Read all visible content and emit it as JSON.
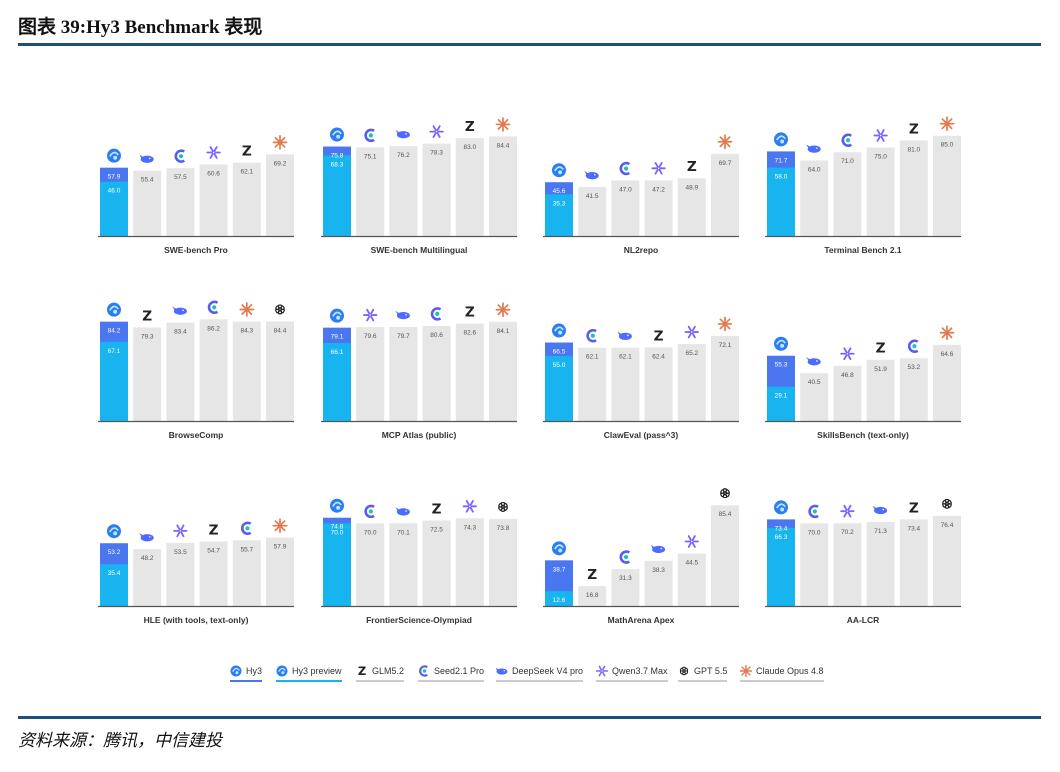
{
  "report": {
    "title": "图表 39:Hy3 Benchmark 表现",
    "source": "资料来源：腾讯，中信建投"
  },
  "colors": {
    "hy3": "#4a76f0",
    "hy3_preview": "#18b4f0",
    "other_bar": "#e6e6e6",
    "axis": "#555555",
    "rule": "#1f4e79",
    "claude": "#e07a4f",
    "qwen": "#7b61ff",
    "seed": "#5b5bf0",
    "deepseek": "#4d6bfe",
    "glm": "#222222",
    "gpt": "#222222"
  },
  "legend": [
    {
      "name": "Hy3",
      "icon": "hy3-icon",
      "underline": "#4a76f0"
    },
    {
      "name": "Hy3 preview",
      "icon": "hy3-preview-icon",
      "underline": "#18b4f0"
    },
    {
      "name": "GLM5.2",
      "icon": "glm-icon",
      "underline": "#cccccc"
    },
    {
      "name": "Seed2.1 Pro",
      "icon": "seed-icon",
      "underline": "#cccccc"
    },
    {
      "name": "DeepSeek V4 pro",
      "icon": "deepseek-icon",
      "underline": "#cccccc"
    },
    {
      "name": "Qwen3.7 Max",
      "icon": "qwen-icon",
      "underline": "#cccccc"
    },
    {
      "name": "GPT 5.5",
      "icon": "gpt-icon",
      "underline": "#cccccc"
    },
    {
      "name": "Claude Opus 4.8",
      "icon": "claude-icon",
      "underline": "#cccccc"
    }
  ],
  "chart_data": [
    {
      "type": "bar",
      "title": "SWE-bench Pro",
      "ylim": [
        0,
        100
      ],
      "hy3": 57.9,
      "hy3_preview": 46.0,
      "series": [
        {
          "name": "DeepSeek V4 pro",
          "value": 55.4
        },
        {
          "name": "Seed2.1 Pro",
          "value": 57.5
        },
        {
          "name": "Qwen3.7 Max",
          "value": 60.6
        },
        {
          "name": "GLM5.2",
          "value": 62.1
        },
        {
          "name": "Claude Opus 4.8",
          "value": 69.2
        }
      ]
    },
    {
      "type": "bar",
      "title": "SWE-bench Multilingual",
      "ylim": [
        0,
        100
      ],
      "hy3": 75.8,
      "hy3_preview": 68.3,
      "series": [
        {
          "name": "Seed2.1 Pro",
          "value": 75.1
        },
        {
          "name": "DeepSeek V4 pro",
          "value": 76.2
        },
        {
          "name": "Qwen3.7 Max",
          "value": 78.3
        },
        {
          "name": "GLM5.2",
          "value": 83.0
        },
        {
          "name": "Claude Opus 4.8",
          "value": 84.4
        }
      ]
    },
    {
      "type": "bar",
      "title": "NL2repo",
      "ylim": [
        0,
        100
      ],
      "hy3": 45.6,
      "hy3_preview": 35.3,
      "series": [
        {
          "name": "DeepSeek V4 pro",
          "value": 41.5
        },
        {
          "name": "Seed2.1 Pro",
          "value": 47.0
        },
        {
          "name": "Qwen3.7 Max",
          "value": 47.2
        },
        {
          "name": "GLM5.2",
          "value": 48.9
        },
        {
          "name": "Claude Opus 4.8",
          "value": 69.7
        }
      ]
    },
    {
      "type": "bar",
      "title": "Terminal Bench 2.1",
      "ylim": [
        0,
        100
      ],
      "hy3": 71.7,
      "hy3_preview": 58.0,
      "series": [
        {
          "name": "DeepSeek V4 pro",
          "value": 64.0
        },
        {
          "name": "Seed2.1 Pro",
          "value": 71.0
        },
        {
          "name": "Qwen3.7 Max",
          "value": 75.0
        },
        {
          "name": "GLM5.2",
          "value": 81.0
        },
        {
          "name": "Claude Opus 4.8",
          "value": 85.0
        }
      ]
    },
    {
      "type": "bar",
      "title": "BrowseComp",
      "ylim": [
        0,
        100
      ],
      "hy3": 84.2,
      "hy3_preview": 67.1,
      "series": [
        {
          "name": "GLM5.2",
          "value": 79.3
        },
        {
          "name": "DeepSeek V4 pro",
          "value": 83.4
        },
        {
          "name": "Seed2.1 Pro",
          "value": 86.2
        },
        {
          "name": "Claude Opus 4.8",
          "value": 84.3
        },
        {
          "name": "GPT 5.5",
          "value": 84.4
        }
      ]
    },
    {
      "type": "bar",
      "title": "MCP Atlas (public)",
      "ylim": [
        0,
        100
      ],
      "hy3": 79.1,
      "hy3_preview": 66.1,
      "series": [
        {
          "name": "Qwen3.7 Max",
          "value": 79.6
        },
        {
          "name": "DeepSeek V4 pro",
          "value": 79.7
        },
        {
          "name": "Seed2.1 Pro",
          "value": 80.6
        },
        {
          "name": "GLM5.2",
          "value": 82.6
        },
        {
          "name": "Claude Opus 4.8",
          "value": 84.1
        }
      ]
    },
    {
      "type": "bar",
      "title": "ClawEval (pass^3)",
      "ylim": [
        0,
        100
      ],
      "hy3": 66.5,
      "hy3_preview": 55.0,
      "series": [
        {
          "name": "Seed2.1 Pro",
          "value": 62.1
        },
        {
          "name": "DeepSeek V4 pro",
          "value": 62.1
        },
        {
          "name": "GLM5.2",
          "value": 62.4
        },
        {
          "name": "Qwen3.7 Max",
          "value": 65.2
        },
        {
          "name": "Claude Opus 4.8",
          "value": 72.1
        }
      ]
    },
    {
      "type": "bar",
      "title": "SkillsBench (text-only)",
      "ylim": [
        0,
        100
      ],
      "hy3": 55.3,
      "hy3_preview": 29.1,
      "series": [
        {
          "name": "DeepSeek V4 pro",
          "value": 40.5
        },
        {
          "name": "Qwen3.7 Max",
          "value": 46.8
        },
        {
          "name": "GLM5.2",
          "value": 51.9
        },
        {
          "name": "Seed2.1 Pro",
          "value": 53.2
        },
        {
          "name": "Claude Opus 4.8",
          "value": 64.6
        }
      ]
    },
    {
      "type": "bar",
      "title": "HLE (with tools, text-only)",
      "ylim": [
        0,
        100
      ],
      "hy3": 53.2,
      "hy3_preview": 35.4,
      "series": [
        {
          "name": "DeepSeek V4 pro",
          "value": 48.2
        },
        {
          "name": "Qwen3.7 Max",
          "value": 53.5
        },
        {
          "name": "GLM5.2",
          "value": 54.7
        },
        {
          "name": "Seed2.1 Pro",
          "value": 55.7
        },
        {
          "name": "Claude Opus 4.8",
          "value": 57.9
        }
      ]
    },
    {
      "type": "bar",
      "title": "FrontierScience-Olympiad",
      "ylim": [
        0,
        100
      ],
      "hy3": 74.8,
      "hy3_preview": 70.0,
      "series": [
        {
          "name": "Seed2.1 Pro",
          "value": 70.0
        },
        {
          "name": "DeepSeek V4 pro",
          "value": 70.1
        },
        {
          "name": "GLM5.2",
          "value": 72.5
        },
        {
          "name": "Qwen3.7 Max",
          "value": 74.3
        },
        {
          "name": "GPT 5.5",
          "value": 73.8
        }
      ]
    },
    {
      "type": "bar",
      "title": "MathArena Apex",
      "ylim": [
        0,
        100
      ],
      "hy3": 38.7,
      "hy3_preview": 12.6,
      "series": [
        {
          "name": "GLM5.2",
          "value": 16.8
        },
        {
          "name": "Seed2.1 Pro",
          "value": 31.3
        },
        {
          "name": "DeepSeek V4 pro",
          "value": 38.3
        },
        {
          "name": "Qwen3.7 Max",
          "value": 44.5
        },
        {
          "name": "GPT 5.5",
          "value": 85.4
        }
      ]
    },
    {
      "type": "bar",
      "title": "AA-LCR",
      "ylim": [
        0,
        100
      ],
      "hy3": 73.4,
      "hy3_preview": 66.3,
      "series": [
        {
          "name": "Seed2.1 Pro",
          "value": 70.0
        },
        {
          "name": "Qwen3.7 Max",
          "value": 70.2
        },
        {
          "name": "DeepSeek V4 pro",
          "value": 71.3
        },
        {
          "name": "GLM5.2",
          "value": 73.4
        },
        {
          "name": "GPT 5.5",
          "value": 76.4
        }
      ]
    }
  ]
}
